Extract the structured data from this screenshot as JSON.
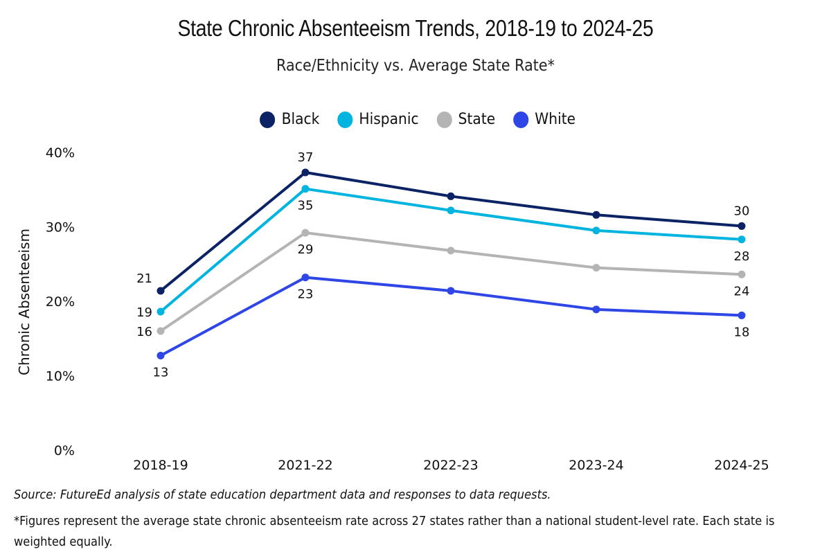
{
  "chart_data": {
    "type": "line",
    "title": "State Chronic Absenteeism Trends, 2018-19 to 2024-25",
    "subtitle": "Race/Ethnicity vs. Average State Rate*",
    "xlabel": "",
    "ylabel": "Chronic Absenteeism",
    "ylim": [
      0,
      40
    ],
    "yticks": [
      0,
      10,
      20,
      30,
      40
    ],
    "ytick_labels": [
      "0%",
      "10%",
      "20%",
      "30%",
      "40%"
    ],
    "categories": [
      "2018-19",
      "2021-22",
      "2022-23",
      "2023-24",
      "2024-25"
    ],
    "grid": false,
    "legend_position": "top-center",
    "series": [
      {
        "name": "Black",
        "color": "#0b2265",
        "values": [
          21.4,
          37.3,
          34.1,
          31.6,
          30.1
        ],
        "labels": [
          "21",
          "37",
          null,
          null,
          "30"
        ],
        "label_pos": [
          "left",
          "above",
          null,
          null,
          "above"
        ]
      },
      {
        "name": "Hispanic",
        "color": "#00b4e0",
        "values": [
          18.6,
          35.1,
          32.2,
          29.5,
          28.3
        ],
        "labels": [
          "19",
          "35",
          null,
          null,
          "28"
        ],
        "label_pos": [
          "left",
          "below",
          null,
          null,
          "below"
        ]
      },
      {
        "name": "State",
        "color": "#b4b4b4",
        "values": [
          16.0,
          29.2,
          26.8,
          24.5,
          23.6
        ],
        "labels": [
          "16",
          "29",
          null,
          null,
          "24"
        ],
        "label_pos": [
          "left",
          "below",
          null,
          null,
          "below"
        ]
      },
      {
        "name": "White",
        "color": "#2e46e6",
        "values": [
          12.7,
          23.2,
          21.4,
          18.9,
          18.1
        ],
        "labels": [
          "13",
          "23",
          null,
          null,
          "18"
        ],
        "label_pos": [
          "below",
          "below",
          null,
          null,
          "below"
        ]
      }
    ]
  },
  "notes": {
    "source": "Source: FutureEd analysis of state education department data and responses to data requests.",
    "footnote": "*Figures represent the average state chronic absenteeism rate across 27 states rather than a national student-level rate. Each state is weighted equally."
  }
}
